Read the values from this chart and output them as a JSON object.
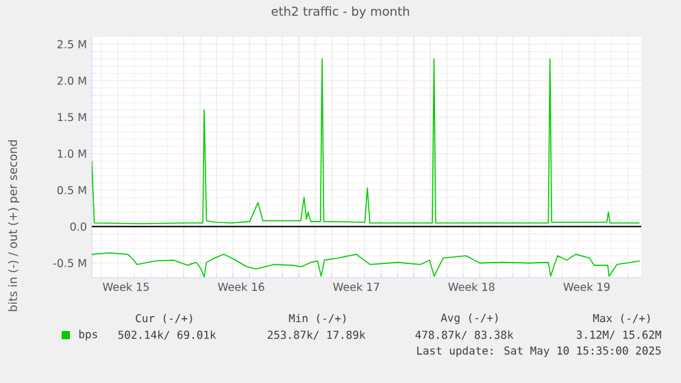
{
  "chart_data": {
    "type": "line",
    "title": "eth2 traffic - by month",
    "ylabel": "bits in (-) / out (+) per second",
    "xlim": [
      "2025-04-07T10:00",
      "2025-05-10T19:35"
    ],
    "ylim": [
      -700000,
      2600000
    ],
    "xticks": [
      {
        "value": "2025-04-09T12:00",
        "label": "Week 15"
      },
      {
        "value": "2025-04-13",
        "label": null
      },
      {
        "value": "2025-04-16T12:00",
        "label": "Week 16"
      },
      {
        "value": "2025-04-20",
        "label": null
      },
      {
        "value": "2025-04-23T12:00",
        "label": "Week 17"
      },
      {
        "value": "2025-04-27",
        "label": null
      },
      {
        "value": "2025-04-30T12:00",
        "label": "Week 18"
      },
      {
        "value": "2025-05-04",
        "label": null
      },
      {
        "value": "2025-05-07T12:00",
        "label": "Week 19"
      }
    ],
    "yticks": [
      {
        "value": -500000,
        "label": "-0.5 M"
      },
      {
        "value": 0,
        "label": "0.0"
      },
      {
        "value": 500000,
        "label": "0.5 M"
      },
      {
        "value": 1000000,
        "label": "1.0 M"
      },
      {
        "value": 1500000,
        "label": "1.5 M"
      },
      {
        "value": 2000000,
        "label": "2.0 M"
      },
      {
        "value": 2500000,
        "label": "2.5 M"
      }
    ],
    "grid": true,
    "legend": "bottom left",
    "marker": "none",
    "line_style": "solid",
    "ref_lines": [
      {
        "axis": "y",
        "value": 0,
        "color": "#000000"
      }
    ],
    "series": [
      {
        "name": "bps",
        "color": "#00cc00",
        "x": [
          "2025-04-07T10:00",
          "2025-04-07T13:36",
          "2025-04-10T10:00",
          "2025-04-12T22:00",
          "2025-04-14T04:00",
          "2025-04-14T05:55",
          "2025-04-14T09:17",
          "2025-04-14T22:00",
          "2025-04-15T22:00",
          "2025-04-17T00:24",
          "2025-04-17T12:24",
          "2025-04-17T19:36",
          "2025-04-19T10:00",
          "2025-04-20T02:48",
          "2025-04-20T07:36",
          "2025-04-20T11:12",
          "2025-04-20T13:36",
          "2025-04-20T17:12",
          "2025-04-21T07:36",
          "2025-04-21T10:00",
          "2025-04-21T12:24",
          "2025-04-24T00:24",
          "2025-04-24T04:00",
          "2025-04-24T07:36",
          "2025-04-28T02:48",
          "2025-04-28T05:12",
          "2025-04-28T07:36",
          "2025-05-01T10:00",
          "2025-05-05T04:00",
          "2025-05-05T06:24",
          "2025-05-05T08:48",
          "2025-05-08T17:12",
          "2025-05-08T19:36",
          "2025-05-08T22:00",
          "2025-05-10T17:12"
        ],
        "values": [
          900000,
          50000,
          40000,
          50000,
          50000,
          1600000,
          80000,
          60000,
          50000,
          70000,
          330000,
          80000,
          80000,
          80000,
          400000,
          100000,
          200000,
          70000,
          70000,
          2300000,
          70000,
          60000,
          530000,
          50000,
          50000,
          2300000,
          50000,
          50000,
          50000,
          2300000,
          60000,
          60000,
          200000,
          50000,
          50000
        ]
      },
      {
        "color": "#00cc00",
        "x": [
          "2025-04-07T10:00",
          "2025-04-08T11:55",
          "2025-04-09T14:34",
          "2025-04-09T21:17",
          "2025-04-10T04:00",
          "2025-04-11T06:38",
          "2025-04-12T09:17",
          "2025-04-13T05:26",
          "2025-04-13T18:38",
          "2025-04-14T01:22",
          "2025-04-14T05:55",
          "2025-04-14T09:17",
          "2025-04-14T21:17",
          "2025-04-15T10:43",
          "2025-04-15T23:55",
          "2025-04-16T20:05",
          "2025-04-17T09:17",
          "2025-04-18T11:55",
          "2025-04-19T14:34",
          "2025-04-20T04:00",
          "2025-04-20T17:26",
          "2025-04-21T03:17",
          "2025-04-21T08:34",
          "2025-04-21T13:22",
          "2025-04-22T09:17",
          "2025-04-23T11:55",
          "2025-04-24T08:05",
          "2025-04-25T23:55",
          "2025-04-27T09:17",
          "2025-04-27T22:43",
          "2025-04-28T05:26",
          "2025-04-28T18:38",
          "2025-04-30T04:00",
          "2025-04-30T23:55",
          "2025-05-02T09:17",
          "2025-05-04T01:22",
          "2025-05-05T04:00",
          "2025-05-05T07:22",
          "2025-05-05T17:26",
          "2025-05-06T06:38",
          "2025-05-06T20:05",
          "2025-05-07T16:00",
          "2025-05-07T22:43",
          "2025-05-08T18:38",
          "2025-05-08T20:34",
          "2025-05-09T08:05",
          "2025-05-10T17:26"
        ],
        "values": [
          -380000,
          -360000,
          -380000,
          -440000,
          -520000,
          -470000,
          -460000,
          -530000,
          -490000,
          -580000,
          -690000,
          -490000,
          -430000,
          -380000,
          -440000,
          -550000,
          -580000,
          -520000,
          -530000,
          -550000,
          -490000,
          -470000,
          -680000,
          -460000,
          -430000,
          -380000,
          -520000,
          -490000,
          -520000,
          -460000,
          -680000,
          -430000,
          -400000,
          -500000,
          -490000,
          -500000,
          -490000,
          -680000,
          -400000,
          -460000,
          -380000,
          -430000,
          -530000,
          -530000,
          -680000,
          -520000,
          -470000
        ]
      }
    ],
    "annotations": [
      "Cur (-/+)",
      "Min (-/+)",
      "Avg (-/+)",
      "Max (-/+)",
      "502.14k/ 69.01k",
      "253.87k/ 17.89k",
      "478.87k/ 83.38k",
      "3.12M/ 15.62M",
      "Last update: Sat May 10 15:35:00 2025"
    ]
  }
}
